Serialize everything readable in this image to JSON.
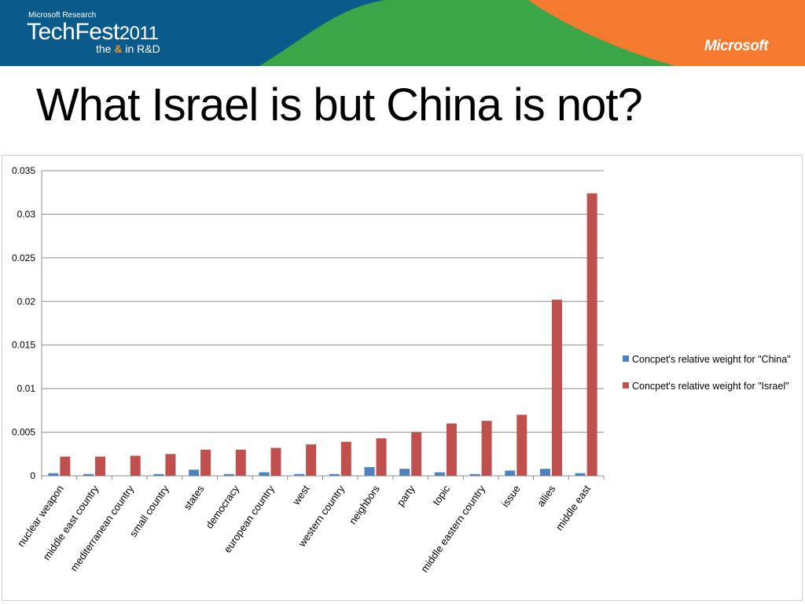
{
  "header": {
    "brand_small": "Microsoft Research",
    "brand_main": "TechFest",
    "brand_year": "2011",
    "tag_pre": "the",
    "tag_amp": "&",
    "tag_post": "in R&D",
    "logo": "Microsoft",
    "colors": {
      "blue": "#0b5a8c",
      "green": "#3aa648",
      "orange": "#f37a2e"
    }
  },
  "slide": {
    "title": "What Israel is but China is not?"
  },
  "chart_data": {
    "type": "bar",
    "title": "",
    "xlabel": "",
    "ylabel": "",
    "ylim": [
      0,
      0.035
    ],
    "yticks": [
      "0",
      "0.005",
      "0.01",
      "0.015",
      "0.02",
      "0.025",
      "0.03",
      "0.035"
    ],
    "grid": true,
    "legend_position": "right",
    "categories": [
      "nuclear weapon",
      "middle east country",
      "mediterranean country",
      "small country",
      "states",
      "democracy",
      "european country",
      "west",
      "western country",
      "neighbors",
      "party",
      "topic",
      "middle eastern country",
      "issue",
      "allies",
      "middle east"
    ],
    "series": [
      {
        "name": "Concpet's relative weight for \"China\"",
        "color": "#4f81bd",
        "values": [
          0.0003,
          0.0002,
          0.0,
          0.0002,
          0.0007,
          0.0002,
          0.0004,
          0.0002,
          0.0002,
          0.001,
          0.0008,
          0.0004,
          0.0002,
          0.0006,
          0.0008,
          0.0003
        ]
      },
      {
        "name": "Concpet's relative weight for \"Israel\"",
        "color": "#c0504d",
        "values": [
          0.0022,
          0.0022,
          0.0023,
          0.0025,
          0.003,
          0.003,
          0.0032,
          0.0036,
          0.0039,
          0.0043,
          0.005,
          0.006,
          0.0063,
          0.007,
          0.0202,
          0.0324
        ]
      }
    ]
  }
}
